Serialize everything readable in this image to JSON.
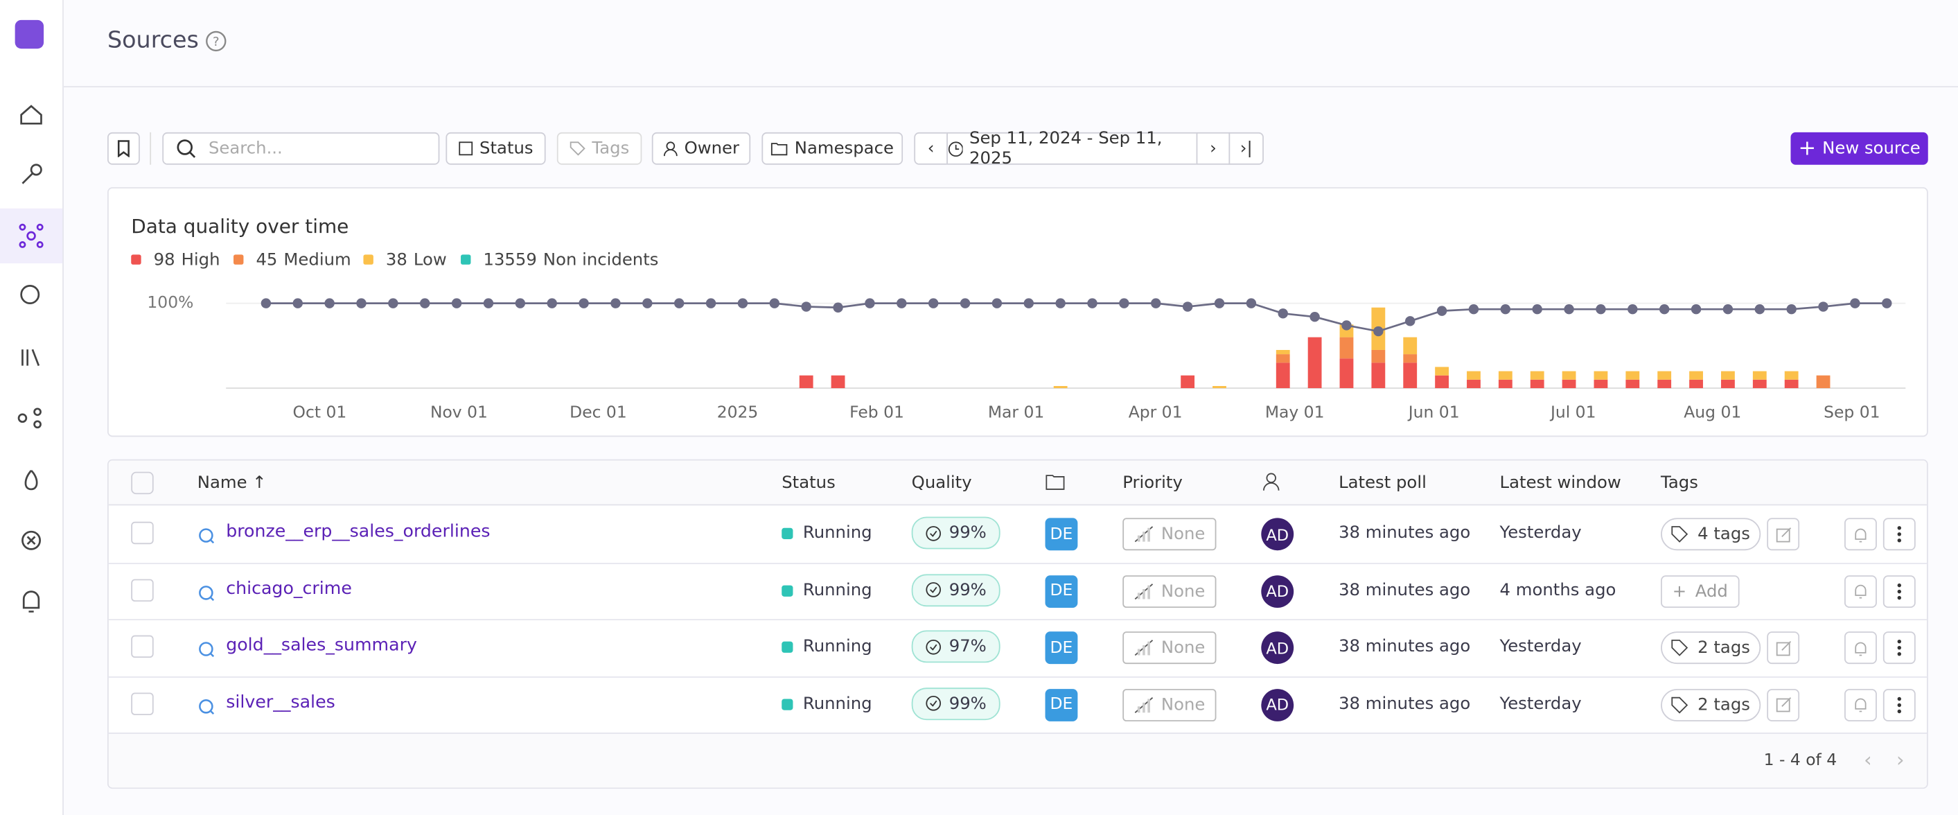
{
  "header": {
    "title": "Sources"
  },
  "toolbar": {
    "search_placeholder": "Search...",
    "filters": [
      "Status",
      "Tags",
      "Owner",
      "Namespace"
    ],
    "date_range": "Sep 11, 2024 - Sep 11, 2025",
    "new_button": "New source"
  },
  "chart_data": {
    "type": "combo",
    "title": "Data quality over time",
    "x_labels": [
      "Oct 01",
      "Nov 01",
      "Dec 01",
      "2025",
      "Feb 01",
      "Mar 01",
      "Apr 01",
      "May 01",
      "Jun 01",
      "Jul 01",
      "Aug 01",
      "Sep 01"
    ],
    "ylim": [
      90,
      100
    ],
    "yticks": [
      {
        "value": 100,
        "label": "100%"
      }
    ],
    "bar_ylim": [
      0,
      20
    ],
    "quality": {
      "color": "#6b6b85",
      "values": [
        100,
        100,
        100,
        100,
        100,
        100,
        100,
        100,
        100,
        100,
        100,
        100,
        100,
        100,
        100,
        100,
        100,
        99.6,
        99.5,
        100,
        100,
        100,
        100,
        100,
        100,
        100,
        100,
        100,
        100,
        99.6,
        100,
        100,
        98.8,
        98.4,
        97.4,
        96.7,
        97.9,
        99.1,
        99.3,
        99.3,
        99.3,
        99.3,
        99.3,
        99.3,
        99.3,
        99.3,
        99.3,
        99.3,
        99.3,
        99.6,
        100,
        100
      ]
    },
    "series": [
      {
        "name": "High",
        "total": 98,
        "color": "#ef5350",
        "values": [
          0,
          0,
          0,
          0,
          0,
          0,
          0,
          0,
          0,
          0,
          0,
          0,
          0,
          0,
          0,
          0,
          0,
          3,
          3,
          0,
          0,
          0,
          0,
          0,
          0,
          0,
          0,
          0,
          0,
          3,
          0,
          0,
          6,
          12,
          7,
          6,
          6,
          3,
          2,
          2,
          2,
          2,
          2,
          2,
          2,
          2,
          2,
          2,
          2,
          0,
          0,
          0
        ]
      },
      {
        "name": "Medium",
        "total": 45,
        "color": "#f4894b",
        "values": [
          0,
          0,
          0,
          0,
          0,
          0,
          0,
          0,
          0,
          0,
          0,
          0,
          0,
          0,
          0,
          0,
          0,
          0,
          0,
          0,
          0,
          0,
          0,
          0,
          0,
          0,
          0,
          0,
          0,
          0,
          0,
          0,
          2,
          0,
          5,
          3,
          2,
          0,
          0,
          0,
          0,
          0,
          0,
          0,
          0,
          0,
          0,
          0,
          0,
          3,
          0,
          0
        ]
      },
      {
        "name": "Low",
        "total": 38,
        "color": "#fbc04a",
        "values": [
          0,
          0,
          0,
          0,
          0,
          0,
          0,
          0,
          0,
          0,
          0,
          0,
          0,
          0,
          0,
          0,
          0,
          0,
          0,
          0,
          0,
          0,
          0,
          0,
          0,
          0.5,
          0,
          0,
          0,
          0,
          0.5,
          0,
          1,
          0,
          3,
          10,
          4,
          2,
          2,
          2,
          2,
          2,
          2,
          2,
          2,
          2,
          2,
          2,
          2,
          0,
          0,
          0
        ]
      },
      {
        "name": "Non incidents",
        "total": 13559,
        "color": "#2ec4b6"
      }
    ]
  },
  "table": {
    "columns": [
      "Name",
      "Status",
      "Quality",
      "Priority",
      "Latest poll",
      "Latest window",
      "Tags"
    ],
    "rows": [
      {
        "name": "bronze__erp__sales_orderlines",
        "status": "Running",
        "quality": "99%",
        "namespace": "DE",
        "priority": "None",
        "owner": "AD",
        "latest_poll": "38 minutes ago",
        "latest_window": "Yesterday",
        "tags": "4 tags"
      },
      {
        "name": "chicago_crime",
        "status": "Running",
        "quality": "99%",
        "namespace": "DE",
        "priority": "None",
        "owner": "AD",
        "latest_poll": "38 minutes ago",
        "latest_window": "4 months ago",
        "tags": "Add"
      },
      {
        "name": "gold__sales_summary",
        "status": "Running",
        "quality": "97%",
        "namespace": "DE",
        "priority": "None",
        "owner": "AD",
        "latest_poll": "38 minutes ago",
        "latest_window": "Yesterday",
        "tags": "2 tags"
      },
      {
        "name": "silver__sales",
        "status": "Running",
        "quality": "99%",
        "namespace": "DE",
        "priority": "None",
        "owner": "AD",
        "latest_poll": "38 minutes ago",
        "latest_window": "Yesterday",
        "tags": "2 tags"
      }
    ]
  },
  "pagination": "1 - 4 of 4"
}
